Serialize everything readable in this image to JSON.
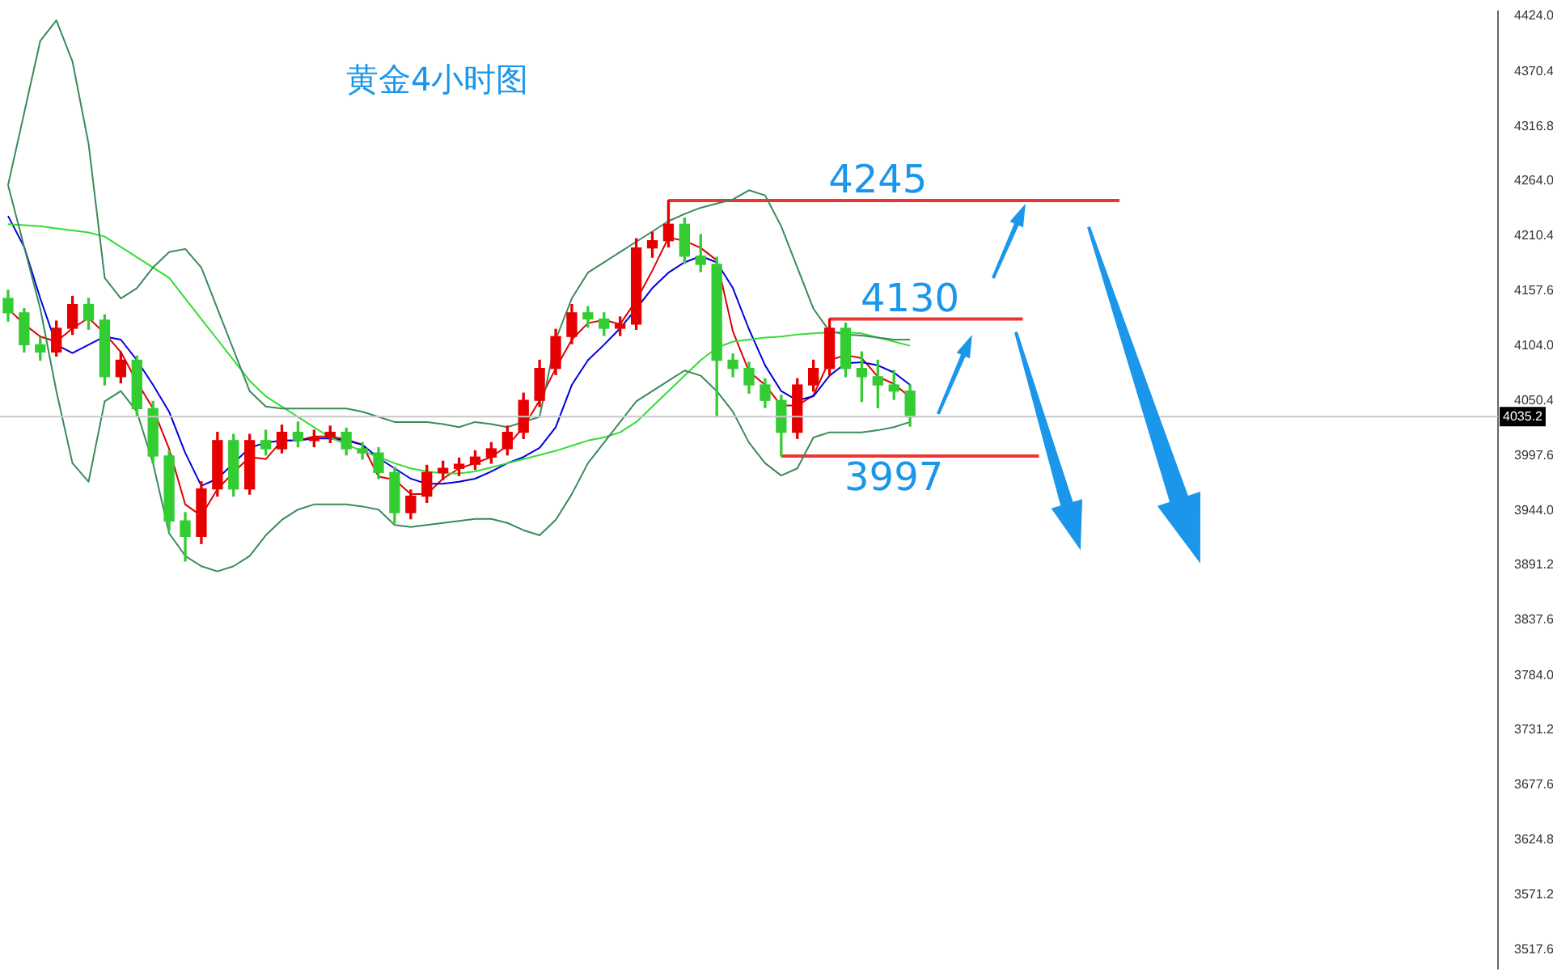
{
  "chart_data": {
    "type": "candlestick",
    "title": "黄金4小时图",
    "categories": [
      null,
      null,
      null,
      null,
      null,
      null,
      null,
      null,
      null,
      null,
      null,
      null,
      null,
      null,
      null,
      null,
      null,
      null,
      null,
      null,
      null,
      null,
      null,
      null,
      null,
      null,
      null,
      null,
      null,
      null,
      null,
      null,
      null,
      null,
      null,
      null,
      null,
      null,
      null,
      null,
      null,
      null,
      null,
      null,
      null,
      null,
      null,
      null,
      null,
      null,
      null,
      null,
      null,
      null,
      null,
      null,
      null,
      null,
      null,
      null,
      null,
      null,
      null,
      null,
      null,
      null,
      null,
      null,
      null,
      null,
      null,
      null,
      null,
      null,
      null,
      null,
      null,
      null,
      null,
      null,
      null,
      null,
      null,
      null,
      null,
      null,
      null,
      null,
      null,
      null,
      null,
      null,
      null
    ],
    "ohlc": [
      [
        4150,
        4158,
        4128,
        4136
      ],
      [
        4136,
        4140,
        4098,
        4105
      ],
      [
        4105,
        4112,
        4090,
        4098
      ],
      [
        4098,
        4128,
        4094,
        4121
      ],
      [
        4121,
        4152,
        4115,
        4144
      ],
      [
        4144,
        4150,
        4120,
        4129
      ],
      [
        4129,
        4134,
        4066,
        4074
      ],
      [
        4074,
        4098,
        4068,
        4090
      ],
      [
        4090,
        4094,
        4036,
        4043
      ],
      [
        4043,
        4050,
        3990,
        3997
      ],
      [
        3997,
        4002,
        3925,
        3934
      ],
      [
        3934,
        3942,
        3895,
        3919
      ],
      [
        3919,
        3972,
        3912,
        3965
      ],
      [
        3965,
        4020,
        3958,
        4012
      ],
      [
        4012,
        4018,
        3958,
        3965
      ],
      [
        3965,
        4018,
        3960,
        4012
      ],
      [
        4012,
        4022,
        3998,
        4004
      ],
      [
        4004,
        4027,
        4000,
        4020
      ],
      [
        4020,
        4030,
        4006,
        4012
      ],
      [
        4012,
        4022,
        4006,
        4015
      ],
      [
        4015,
        4026,
        4010,
        4020
      ],
      [
        4020,
        4024,
        3998,
        4004
      ],
      [
        4004,
        4010,
        3994,
        4000
      ],
      [
        4000,
        4005,
        3975,
        3981
      ],
      [
        3981,
        3986,
        3932,
        3942
      ],
      [
        3942,
        3964,
        3936,
        3958
      ],
      [
        3958,
        3988,
        3952,
        3981
      ],
      [
        3981,
        3992,
        3974,
        3985
      ],
      [
        3985,
        3995,
        3978,
        3989
      ],
      [
        3989,
        4002,
        3984,
        3996
      ],
      [
        3996,
        4010,
        3990,
        4004
      ],
      [
        4004,
        4026,
        3998,
        4020
      ],
      [
        4020,
        4058,
        4014,
        4051
      ],
      [
        4051,
        4090,
        4045,
        4082
      ],
      [
        4082,
        4120,
        4076,
        4113
      ],
      [
        4113,
        4144,
        4106,
        4136
      ],
      [
        4136,
        4142,
        4122,
        4130
      ],
      [
        4130,
        4136,
        4114,
        4121
      ],
      [
        4121,
        4132,
        4114,
        4125
      ],
      [
        4125,
        4208,
        4120,
        4199
      ],
      [
        4199,
        4214,
        4190,
        4206
      ],
      [
        4206,
        4245,
        4200,
        4222
      ],
      [
        4222,
        4228,
        4184,
        4191
      ],
      [
        4191,
        4212,
        4176,
        4183
      ],
      [
        4183,
        4190,
        4035,
        4090
      ],
      [
        4090,
        4096,
        4074,
        4082
      ],
      [
        4082,
        4088,
        4058,
        4066
      ],
      [
        4066,
        4072,
        4044,
        4051
      ],
      [
        4051,
        4056,
        3997,
        4020
      ],
      [
        4020,
        4072,
        4014,
        4066
      ],
      [
        4066,
        4090,
        4060,
        4082
      ],
      [
        4082,
        4130,
        4076,
        4121
      ],
      [
        4121,
        4126,
        4074,
        4082
      ],
      [
        4082,
        4098,
        4050,
        4074
      ],
      [
        4074,
        4090,
        4044,
        4066
      ],
      [
        4066,
        4080,
        4052,
        4060
      ],
      [
        4060,
        4066,
        4026,
        4035
      ],
      null,
      null,
      null,
      null,
      null,
      null,
      null,
      null,
      null,
      null,
      null,
      null,
      null,
      null,
      null,
      null,
      null,
      null,
      null,
      null,
      null,
      null,
      null,
      null,
      null,
      null,
      null,
      null,
      null,
      null,
      null,
      null,
      null,
      null,
      null,
      null
    ],
    "colors": [
      "#33cc33",
      "#33cc33",
      "#33cc33",
      "#e60000",
      "#e60000",
      "#33cc33",
      "#33cc33",
      "#e60000",
      "#33cc33",
      "#33cc33",
      "#33cc33",
      "#33cc33",
      "#e60000",
      "#e60000",
      "#33cc33",
      "#e60000",
      "#33cc33",
      "#e60000",
      "#33cc33",
      "#e60000",
      "#e60000",
      "#33cc33",
      "#33cc33",
      "#33cc33",
      "#33cc33",
      "#e60000",
      "#e60000",
      "#e60000",
      "#e60000",
      "#e60000",
      "#e60000",
      "#e60000",
      "#e60000",
      "#e60000",
      "#e60000",
      "#e60000",
      "#33cc33",
      "#33cc33",
      "#e60000",
      "#e60000",
      "#e60000",
      "#e60000",
      "#33cc33",
      "#33cc33",
      "#33cc33",
      "#33cc33",
      "#33cc33",
      "#33cc33",
      "#33cc33",
      "#e60000",
      "#e60000",
      "#e60000",
      "#33cc33",
      "#33cc33",
      "#33cc33",
      "#33cc33",
      "#33cc33",
      null,
      null,
      null,
      null,
      null,
      null,
      null,
      null,
      null,
      null,
      null,
      null,
      null,
      null,
      null,
      null,
      null,
      null,
      null,
      null,
      null,
      null,
      null,
      null,
      null,
      null,
      null,
      null,
      null,
      null,
      null,
      null,
      null,
      null,
      null,
      null
    ],
    "series": [
      {
        "type": "line",
        "color": "#3a8a5a",
        "values": [
          4260,
          4330,
          4400,
          4420,
          4380,
          4300,
          4170,
          4150,
          4160,
          4180,
          4195,
          4198,
          4180,
          4140,
          4100,
          4060,
          4045,
          4043,
          4043,
          4043,
          4043,
          4043,
          4040,
          4035,
          4030,
          4030,
          4030,
          4028,
          4025,
          4030,
          4028,
          4025,
          4030,
          4035,
          4110,
          4150,
          4175,
          4185,
          4195,
          4205,
          4215,
          4225,
          4232,
          4238,
          4242,
          4246,
          4255,
          4250,
          4220,
          4180,
          4140,
          4118,
          4115,
          4114,
          4112,
          4110,
          4110,
          null,
          null,
          null,
          null,
          null,
          null,
          null,
          null,
          null,
          null,
          null,
          null,
          null,
          null,
          null,
          null,
          null,
          null,
          null,
          null,
          null,
          null,
          null,
          null,
          null,
          null,
          null,
          null,
          null,
          null,
          null,
          null,
          null,
          null,
          null,
          null
        ]
      },
      {
        "type": "line",
        "color": "#3a8a5a",
        "values": [
          4260,
          4200,
          4140,
          4060,
          3990,
          3972,
          4050,
          4060,
          4040,
          3990,
          3922,
          3900,
          3890,
          3885,
          3890,
          3900,
          3920,
          3935,
          3945,
          3950,
          3950,
          3950,
          3948,
          3945,
          3930,
          3928,
          3930,
          3932,
          3934,
          3936,
          3936,
          3932,
          3925,
          3920,
          3935,
          3960,
          3990,
          4010,
          4030,
          4050,
          4060,
          4070,
          4080,
          4075,
          4060,
          4040,
          4010,
          3990,
          3978,
          3985,
          4015,
          4020,
          4020,
          4020,
          4022,
          4025,
          4030,
          null,
          null,
          null,
          null,
          null,
          null,
          null,
          null,
          null,
          null,
          null,
          null,
          null,
          null,
          null,
          null,
          null,
          null,
          null,
          null,
          null,
          null,
          null,
          null,
          null,
          null,
          null,
          null,
          null,
          null,
          null,
          null,
          null,
          null,
          null,
          null
        ]
      },
      {
        "type": "line",
        "color": "#33dd33",
        "values": [
          4222,
          4221,
          4220,
          4218,
          4216,
          4214,
          4210,
          4200,
          4190,
          4180,
          4170,
          4150,
          4130,
          4110,
          4090,
          4070,
          4055,
          4045,
          4035,
          4025,
          4015,
          4008,
          4002,
          3996,
          3990,
          3985,
          3982,
          3980,
          3980,
          3982,
          3986,
          3990,
          3994,
          3998,
          4002,
          4007,
          4012,
          4015,
          4020,
          4030,
          4045,
          4060,
          4075,
          4090,
          4102,
          4108,
          4110,
          4112,
          4113,
          4115,
          4116,
          4117,
          4117,
          4116,
          4112,
          4108,
          4104,
          null,
          null,
          null,
          null,
          null,
          null,
          null,
          null,
          null,
          null,
          null,
          null,
          null,
          null,
          null,
          null,
          null,
          null,
          null,
          null,
          null,
          null,
          null,
          null,
          null,
          null,
          null,
          null,
          null,
          null,
          null,
          null,
          null,
          null,
          null,
          null
        ]
      },
      {
        "type": "line",
        "color": "#0000dd",
        "values": [
          4230,
          4200,
          4150,
          4105,
          4097,
          4105,
          4113,
          4110,
          4090,
          4066,
          4040,
          4000,
          3968,
          3975,
          3990,
          4005,
          4010,
          4012,
          4012,
          4014,
          4014,
          4012,
          4008,
          3995,
          3985,
          3975,
          3970,
          3970,
          3972,
          3975,
          3982,
          3990,
          3996,
          4005,
          4025,
          4066,
          4090,
          4105,
          4121,
          4140,
          4160,
          4175,
          4185,
          4191,
          4185,
          4160,
          4120,
          4085,
          4060,
          4051,
          4055,
          4075,
          4087,
          4088,
          4085,
          4078,
          4066,
          null,
          null,
          null,
          null,
          null,
          null,
          null,
          null,
          null,
          null,
          null,
          null,
          null,
          null,
          null,
          null,
          null,
          null,
          null,
          null,
          null,
          null,
          null,
          null,
          null,
          null,
          null,
          null,
          null,
          null,
          null,
          null,
          null,
          null,
          null,
          null
        ]
      },
      {
        "type": "line",
        "color": "#e00000",
        "values": [
          4140,
          4125,
          4113,
          4108,
          4121,
          4131,
          4116,
          4098,
          4069,
          4043,
          4004,
          3950,
          3939,
          3965,
          3981,
          3996,
          3994,
          4012,
          4012,
          4016,
          4016,
          4013,
          4008,
          3977,
          3974,
          3960,
          3960,
          3975,
          3985,
          3990,
          3996,
          4007,
          4025,
          4051,
          4082,
          4110,
          4126,
          4129,
          4125,
          4148,
          4177,
          4209,
          4206,
          4199,
          4187,
          4118,
          4079,
          4066,
          4046,
          4046,
          4056,
          4090,
          4095,
          4092,
          4074,
          4067,
          4054,
          null,
          null,
          null,
          null,
          null,
          null,
          null,
          null,
          null,
          null,
          null,
          null,
          null,
          null,
          null,
          null,
          null,
          null,
          null,
          null,
          null,
          null,
          null,
          null,
          null,
          null,
          null,
          null,
          null,
          null,
          null,
          null,
          null,
          null,
          null,
          null
        ]
      },
      {
        "type": "line",
        "name": "4245",
        "color": "#ee3333",
        "values": [
          null,
          null,
          null,
          null,
          null,
          null,
          null,
          null,
          null,
          null,
          null,
          null,
          null,
          null,
          null,
          null,
          null,
          null,
          null,
          null,
          null,
          null,
          null,
          null,
          null,
          null,
          null,
          null,
          null,
          null,
          null,
          null,
          null,
          null,
          null,
          null,
          null,
          null,
          null,
          null,
          null,
          4245,
          4245,
          4245,
          4245,
          4245,
          4245,
          4245,
          4245,
          4245,
          4245,
          4245,
          4245,
          4245,
          4245,
          4245,
          4245,
          4245,
          4245,
          4245,
          4245,
          4245,
          4245,
          4245,
          4245,
          4245,
          4245,
          4245,
          4245,
          4245,
          null,
          null,
          null,
          null,
          null,
          null,
          null,
          null,
          null,
          null,
          null,
          null,
          null,
          null,
          null,
          null,
          null,
          null,
          null,
          null,
          null,
          null,
          null
        ]
      },
      {
        "type": "line",
        "name": "4130",
        "color": "#ee3333",
        "values": [
          null,
          null,
          null,
          null,
          null,
          null,
          null,
          null,
          null,
          null,
          null,
          null,
          null,
          null,
          null,
          null,
          null,
          null,
          null,
          null,
          null,
          null,
          null,
          null,
          null,
          null,
          null,
          null,
          null,
          null,
          null,
          null,
          null,
          null,
          null,
          null,
          null,
          null,
          null,
          null,
          null,
          null,
          null,
          null,
          null,
          null,
          null,
          null,
          null,
          null,
          null,
          4130,
          4130,
          4130,
          4130,
          4130,
          4130,
          4130,
          4130,
          4130,
          4130,
          4130,
          4130,
          4130,
          null,
          null,
          null,
          null,
          null,
          null,
          null,
          null,
          null,
          null,
          null,
          null,
          null,
          null,
          null,
          null,
          null,
          null,
          null,
          null,
          null,
          null,
          null,
          null,
          null,
          null,
          null,
          null,
          null
        ]
      },
      {
        "type": "line",
        "name": "3997",
        "color": "#ee3333",
        "values": [
          null,
          null,
          null,
          null,
          null,
          null,
          null,
          null,
          null,
          null,
          null,
          null,
          null,
          null,
          null,
          null,
          null,
          null,
          null,
          null,
          null,
          null,
          null,
          null,
          null,
          null,
          null,
          null,
          null,
          null,
          null,
          null,
          null,
          null,
          null,
          null,
          null,
          null,
          null,
          null,
          null,
          null,
          null,
          null,
          null,
          null,
          null,
          null,
          3997,
          3997,
          3997,
          3997,
          3997,
          3997,
          3997,
          3997,
          3997,
          3997,
          3997,
          3997,
          3997,
          3997,
          3997,
          3997,
          3997,
          null,
          null,
          null,
          null,
          null,
          null,
          null,
          null,
          null,
          null,
          null,
          null,
          null,
          null,
          null,
          null,
          null,
          null,
          null,
          null,
          null,
          null,
          null,
          null,
          null,
          null,
          null,
          null
        ]
      }
    ],
    "ref_lines": [
      {
        "axis": "y",
        "value": 4035.2,
        "label": "4035.2",
        "color": "#c8c8c8"
      }
    ],
    "ylim": [
      3499,
      4429
    ],
    "yticks": [
      {
        "value": 4424,
        "label": "4424.0"
      },
      {
        "value": 4370.4,
        "label": "4370.4"
      },
      {
        "value": 4316.8,
        "label": "4316.8"
      },
      {
        "value": 4264,
        "label": "4264.0"
      },
      {
        "value": 4210.4,
        "label": "4210.4"
      },
      {
        "value": 4157.6,
        "label": "4157.6"
      },
      {
        "value": 4104,
        "label": "4104.0"
      },
      {
        "value": 4050.4,
        "label": "4050.4"
      },
      {
        "value": 3997.6,
        "label": "3997.6"
      },
      {
        "value": 3944,
        "label": "3944.0"
      },
      {
        "value": 3891.2,
        "label": "3891.2"
      },
      {
        "value": 3837.6,
        "label": "3837.6"
      },
      {
        "value": 3784,
        "label": "3784.0"
      },
      {
        "value": 3731.2,
        "label": "3731.2"
      },
      {
        "value": 3677.6,
        "label": "3677.6"
      },
      {
        "value": 3624.8,
        "label": "3624.8"
      },
      {
        "value": 3571.2,
        "label": "3571.2"
      },
      {
        "value": 3517.6,
        "label": "3517.6"
      }
    ],
    "tick_labels": "y",
    "grid": false,
    "legend": false
  }
}
